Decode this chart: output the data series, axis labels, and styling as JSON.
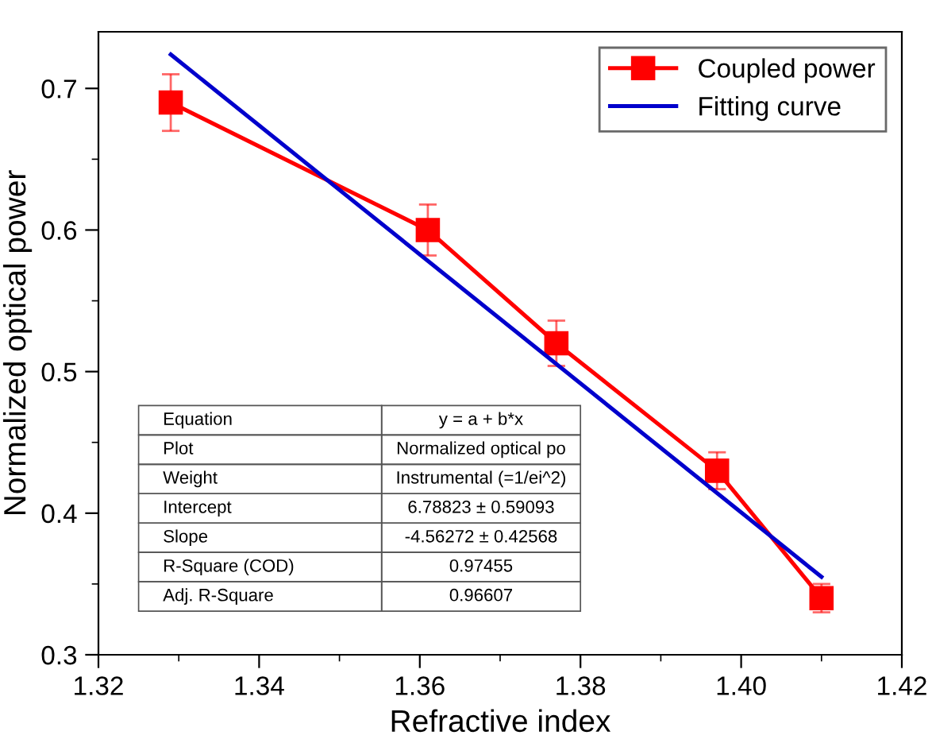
{
  "chart_data": {
    "type": "line",
    "xlabel": "Refractive index",
    "ylabel": "Normalized optical power",
    "xlim": [
      1.32,
      1.42
    ],
    "xticks": [
      {
        "value": 1.32,
        "label": "1.32"
      },
      {
        "value": 1.34,
        "label": "1.34"
      },
      {
        "value": 1.36,
        "label": "1.36"
      },
      {
        "value": 1.38,
        "label": "1.38"
      },
      {
        "value": 1.4,
        "label": "1.40"
      },
      {
        "value": 1.42,
        "label": "1.42"
      }
    ],
    "ylim": [
      0.3,
      0.74
    ],
    "yticks": [
      0.3,
      0.4,
      0.5,
      0.6,
      0.7
    ],
    "grid": false,
    "legend": "top right",
    "series": [
      {
        "name": "Coupled power",
        "color": "#ff0000",
        "marker": "square",
        "x": [
          1.329,
          1.361,
          1.377,
          1.397,
          1.41
        ],
        "values": [
          0.69,
          0.6,
          0.52,
          0.43,
          0.34
        ],
        "errors": [
          0.02,
          0.018,
          0.016,
          0.013,
          0.01
        ]
      },
      {
        "name": "Fitting curve",
        "color": "#0000cc",
        "marker": "none",
        "x": [
          1.329,
          1.41
        ],
        "values": [
          0.724,
          0.355
        ]
      }
    ],
    "annotations": [
      "Equation",
      "y = a + b*x",
      "Plot",
      "Normalized optical po",
      "Weight",
      "Instrumental (=1/ei^2)",
      "Intercept",
      "6.78823 ± 0.59093",
      "Slope",
      "-4.56272 ± 0.42568",
      "R-Square (COD)",
      "0.97455",
      "Adj. R-Square",
      "0.96607"
    ]
  }
}
